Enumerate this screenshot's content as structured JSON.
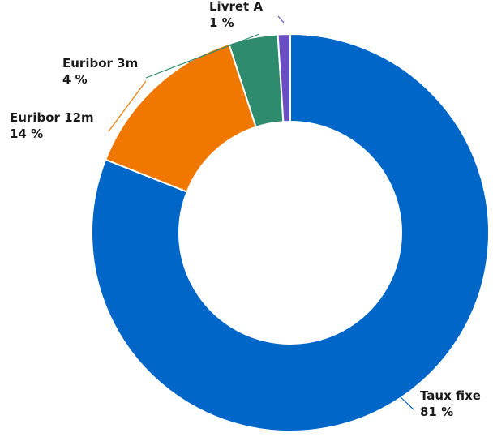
{
  "chart_data": {
    "type": "pie",
    "donut": true,
    "slices": [
      {
        "name": "Taux fixe",
        "value": 81,
        "label": "81 %",
        "color": "#0066c8"
      },
      {
        "name": "Euribor 12m",
        "value": 14,
        "label": "14 %",
        "color": "#f07800"
      },
      {
        "name": "Euribor 3m",
        "value": 4,
        "label": "4 %",
        "color": "#2e8b6e"
      },
      {
        "name": "Livret A",
        "value": 1,
        "label": "1 %",
        "color": "#6a4fc4"
      }
    ],
    "title": "",
    "legend": "none"
  }
}
